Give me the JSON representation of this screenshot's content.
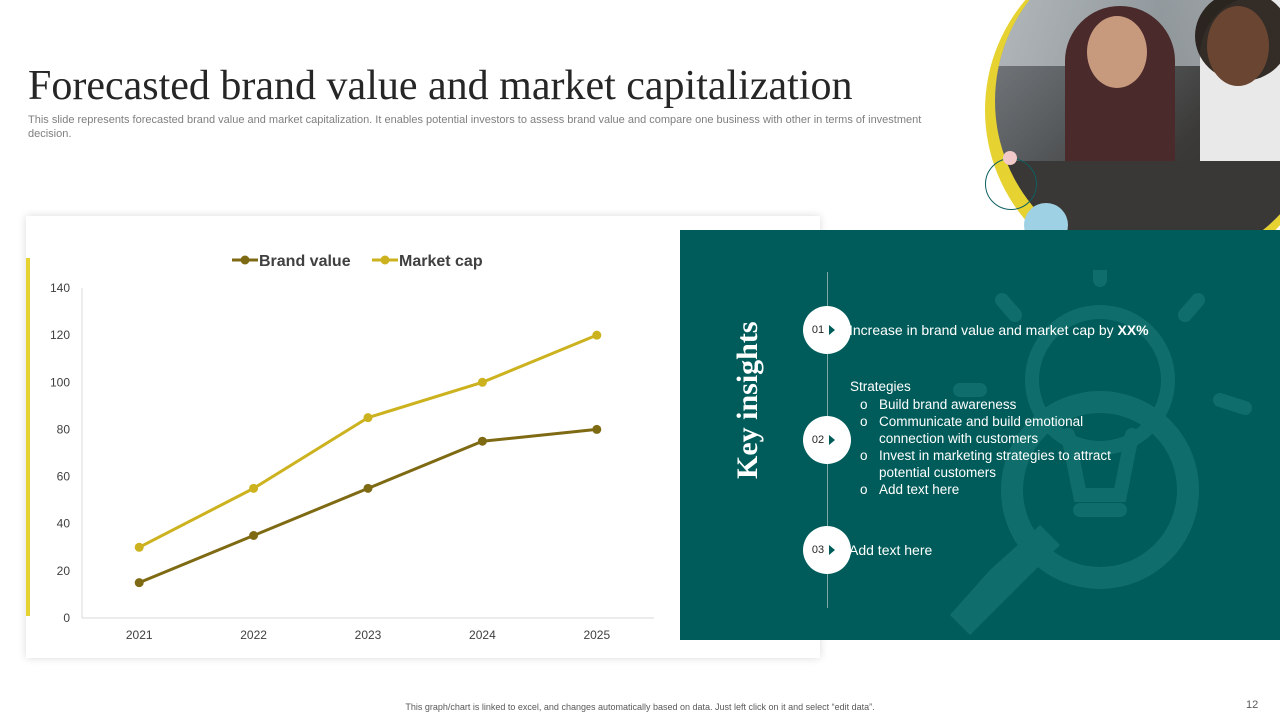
{
  "slide": {
    "title": "Forecasted brand value and market capitalization",
    "subtitle": "This slide represents forecasted brand value and market capitalization. It enables potential investors to assess brand value and compare one business with other in terms of investment decision.",
    "footer": "This graph/chart is linked to excel, and changes automatically based on data. Just left click on it and select “edit data”.",
    "page_number": "12"
  },
  "colors": {
    "brand_value": "#7f6a14",
    "market_cap": "#ccb21e",
    "panel": "#005c5a",
    "accent": "#e6d231"
  },
  "chart_data": {
    "type": "line",
    "categories": [
      "2021",
      "2022",
      "2023",
      "2024",
      "2025"
    ],
    "series": [
      {
        "name": "Brand value",
        "values": [
          15,
          35,
          55,
          75,
          80
        ]
      },
      {
        "name": "Market cap",
        "values": [
          30,
          55,
          85,
          100,
          120
        ]
      }
    ],
    "ylim": [
      0,
      140
    ],
    "yticks": [
      0,
      20,
      40,
      60,
      80,
      100,
      120,
      140
    ],
    "legend": "top",
    "title": "",
    "xlabel": "",
    "ylabel": ""
  },
  "insights": {
    "heading": "Key insights",
    "items": [
      {
        "num": "01",
        "text": "Increase  in brand value and market cap by ",
        "bold": "XX%"
      },
      {
        "num": "02",
        "strategies_label": "Strategies",
        "strategies": [
          "Build brand awareness",
          "Communicate and build emotional connection with customers",
          "Invest in marketing strategies to attract potential customers",
          "Add text here"
        ]
      },
      {
        "num": "03",
        "text": "Add text here"
      }
    ]
  },
  "images": {
    "photo": "two-women-meeting-photo"
  }
}
